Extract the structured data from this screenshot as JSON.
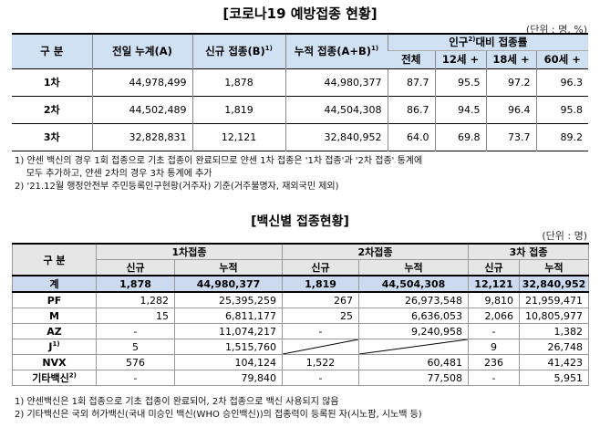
{
  "title1": "[코로나19 예방접종 현황]",
  "unit1": "(단위 : 명, %)",
  "table1": {
    "h_div": "구 분",
    "h_prev": "전일 누계(A)",
    "h_new": "신규 접종(B)",
    "h_new_sup": "1)",
    "h_cum": "누적 접종(A+B)",
    "h_cum_sup": "1)",
    "h_rate": "인구",
    "h_rate_sup": "2)",
    "h_rate_tail": "대비 접종률",
    "h_total": "전체",
    "h_12": "12세 +",
    "h_18": "18세 +",
    "h_60": "60세 +",
    "rows": [
      {
        "label": "1차",
        "prev": "44,978,499",
        "new": "1,878",
        "cum": "44,980,377",
        "all": "87.7",
        "a12": "95.5",
        "a18": "97.2",
        "a60": "96.3"
      },
      {
        "label": "2차",
        "prev": "44,502,489",
        "new": "1,819",
        "cum": "44,504,308",
        "all": "86.7",
        "a12": "94.5",
        "a18": "96.4",
        "a60": "95.8"
      },
      {
        "label": "3차",
        "prev": "32,828,831",
        "new": "12,121",
        "cum": "32,840,952",
        "all": "64.0",
        "a12": "69.8",
        "a18": "73.7",
        "a60": "89.2"
      }
    ]
  },
  "notes1": [
    "1) 얀센 백신의 경우 1회 접종으로 기초 접종이 완료되므로 얀센 1차 접종은 '1차 접종'과 '2차 접종' 통계에",
    "    모두 추가하고, 얀센 2차의 경우 3차 통계에 추가",
    "2) '21.12월 행정안전부 주민등록인구현황(거주자) 기준(거주불명자, 재외국민 제외)"
  ],
  "title2": "[백신별 접종현황]",
  "unit2": "(단위 : 명)",
  "table2": {
    "h_div": "구 분",
    "h_d1": "1차접종",
    "h_d2": "2차접종",
    "h_d3": "3차 접종",
    "h_new": "신규",
    "h_cum": "누적",
    "rows": [
      {
        "label": "계",
        "sup": "",
        "n1": "1,878",
        "c1": "44,980,377",
        "n2": "1,819",
        "c2": "44,504,308",
        "n3": "12,121",
        "c3": "32,840,952"
      },
      {
        "label": "PF",
        "sup": "",
        "n1": "1,282",
        "c1": "25,395,259",
        "n2": "267",
        "c2": "26,973,548",
        "n3": "9,810",
        "c3": "21,959,471"
      },
      {
        "label": "M",
        "sup": "",
        "n1": "15",
        "c1": "6,811,177",
        "n2": "25",
        "c2": "6,636,053",
        "n3": "2,066",
        "c3": "10,805,977"
      },
      {
        "label": "AZ",
        "sup": "",
        "n1": "-",
        "c1": "11,074,217",
        "n2": "-",
        "c2": "9,240,958",
        "n3": "-",
        "c3": "1,382"
      },
      {
        "label": "J",
        "sup": "1)",
        "n1": "5",
        "c1": "1,515,760",
        "n2": "",
        "c2": "",
        "n3": "9",
        "c3": "26,748"
      },
      {
        "label": "NVX",
        "sup": "",
        "n1": "576",
        "c1": "104,124",
        "n2": "1,522",
        "c2": "60,481",
        "n3": "236",
        "c3": "41,423"
      },
      {
        "label": "기타백신",
        "sup": "2)",
        "n1": "-",
        "c1": "79,840",
        "n2": "-",
        "c2": "77,508",
        "n3": "-",
        "c3": "5,951"
      }
    ]
  },
  "notes2": [
    "1) 얀센백신은 1회 접종으로 기초 접종이 완료되어, 2차 접종으로 백신 사용되지 않음",
    "2) 기타백신은 국외 허가백신(국내 미승인 백신(WHO 승인백신))의 접종력이 등록된 자(시노팜, 시노백 등)"
  ]
}
